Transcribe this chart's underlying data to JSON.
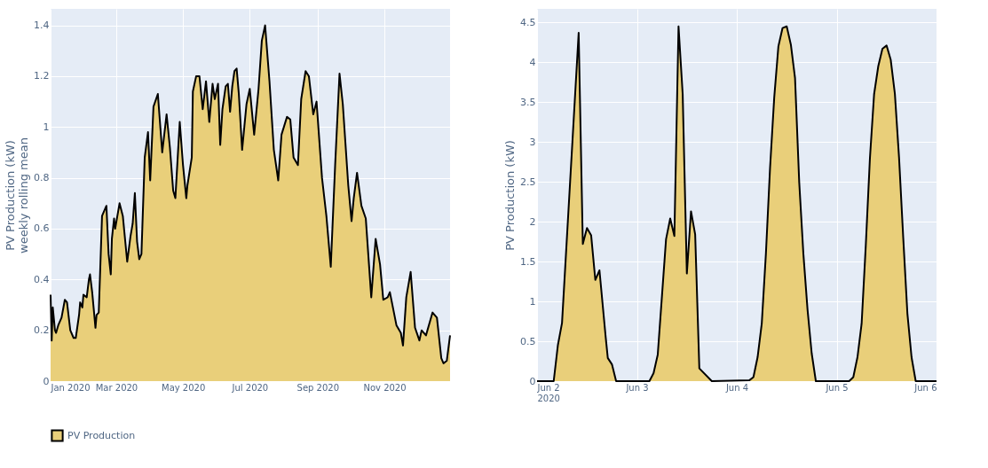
{
  "chart_data": [
    {
      "type": "area",
      "ylabel": "PV Production (kW)\nweekly rolling mean",
      "legend": "bottom left",
      "grid": true,
      "xlim": [
        "2020-01-01",
        "2020-12-31"
      ],
      "xticks": [
        {
          "value": "2020-01-01",
          "label": "Jan 2020"
        },
        {
          "value": "2020-03-01",
          "label": "Mar 2020"
        },
        {
          "value": "2020-05-01",
          "label": "May 2020"
        },
        {
          "value": "2020-07-01",
          "label": "Jul 2020"
        },
        {
          "value": "2020-09-01",
          "label": "Sep 2020"
        },
        {
          "value": "2020-11-01",
          "label": "Nov 2020"
        }
      ],
      "ylim": [
        0,
        1.465
      ],
      "yticks": [
        0,
        0.2,
        0.4,
        0.6,
        0.8,
        1,
        1.2,
        1.4
      ],
      "x": [
        "2020-01-01",
        "2020-01-02",
        "2020-01-03",
        "2020-01-05",
        "2020-01-06",
        "2020-01-08",
        "2020-01-11",
        "2020-01-14",
        "2020-01-16",
        "2020-01-19",
        "2020-01-22",
        "2020-01-24",
        "2020-01-27",
        "2020-01-28",
        "2020-01-30",
        "2020-01-31",
        "2020-02-03",
        "2020-02-05",
        "2020-02-06",
        "2020-02-08",
        "2020-02-11",
        "2020-02-12",
        "2020-02-14",
        "2020-02-17",
        "2020-02-21",
        "2020-02-23",
        "2020-02-25",
        "2020-02-26",
        "2020-02-28",
        "2020-02-29",
        "2020-03-04",
        "2020-03-07",
        "2020-03-11",
        "2020-03-14",
        "2020-03-16",
        "2020-03-18",
        "2020-03-20",
        "2020-03-22",
        "2020-03-24",
        "2020-03-27",
        "2020-03-30",
        "2020-04-01",
        "2020-04-04",
        "2020-04-08",
        "2020-04-12",
        "2020-04-16",
        "2020-04-19",
        "2020-04-22",
        "2020-04-24",
        "2020-04-28",
        "2020-05-01",
        "2020-05-04",
        "2020-05-05",
        "2020-05-09",
        "2020-05-10",
        "2020-05-13",
        "2020-05-16",
        "2020-05-19",
        "2020-05-22",
        "2020-05-25",
        "2020-05-28",
        "2020-05-30",
        "2020-06-02",
        "2020-06-04",
        "2020-06-06",
        "2020-06-09",
        "2020-06-11",
        "2020-06-13",
        "2020-06-15",
        "2020-06-17",
        "2020-06-19",
        "2020-06-21",
        "2020-06-24",
        "2020-06-28",
        "2020-07-01",
        "2020-07-05",
        "2020-07-09",
        "2020-07-12",
        "2020-07-15",
        "2020-07-19",
        "2020-07-23",
        "2020-07-27",
        "2020-07-30",
        "2020-08-04",
        "2020-08-07",
        "2020-08-10",
        "2020-08-14",
        "2020-08-17",
        "2020-08-21",
        "2020-08-24",
        "2020-08-28",
        "2020-08-31",
        "2020-09-05",
        "2020-09-09",
        "2020-09-13",
        "2020-09-17",
        "2020-09-21",
        "2020-09-24",
        "2020-09-29",
        "2020-10-02",
        "2020-10-04",
        "2020-10-07",
        "2020-10-11",
        "2020-10-15",
        "2020-10-20",
        "2020-10-24",
        "2020-10-28",
        "2020-10-31",
        "2020-11-04",
        "2020-11-06",
        "2020-11-12",
        "2020-11-16",
        "2020-11-18",
        "2020-11-21",
        "2020-11-25",
        "2020-11-29",
        "2020-12-03",
        "2020-12-05",
        "2020-12-09",
        "2020-12-15",
        "2020-12-19",
        "2020-12-23",
        "2020-12-25",
        "2020-12-28",
        "2020-12-31"
      ],
      "series": [
        {
          "name": "PV Production",
          "color": "#e9cf7a",
          "values": [
            0.34,
            0.16,
            0.29,
            0.2,
            0.19,
            0.22,
            0.25,
            0.32,
            0.31,
            0.2,
            0.17,
            0.17,
            0.26,
            0.31,
            0.29,
            0.34,
            0.33,
            0.4,
            0.42,
            0.35,
            0.21,
            0.26,
            0.27,
            0.65,
            0.69,
            0.5,
            0.42,
            0.56,
            0.64,
            0.6,
            0.7,
            0.65,
            0.47,
            0.57,
            0.62,
            0.74,
            0.55,
            0.48,
            0.5,
            0.88,
            0.98,
            0.79,
            1.08,
            1.13,
            0.9,
            1.05,
            0.92,
            0.75,
            0.72,
            1.02,
            0.85,
            0.72,
            0.77,
            0.88,
            1.14,
            1.2,
            1.2,
            1.07,
            1.18,
            1.02,
            1.17,
            1.11,
            1.17,
            0.93,
            1.07,
            1.16,
            1.17,
            1.06,
            1.16,
            1.22,
            1.23,
            1.13,
            0.91,
            1.09,
            1.15,
            0.97,
            1.15,
            1.34,
            1.4,
            1.18,
            0.91,
            0.79,
            0.97,
            1.04,
            1.03,
            0.88,
            0.85,
            1.11,
            1.22,
            1.2,
            1.05,
            1.1,
            0.8,
            0.65,
            0.45,
            0.85,
            1.21,
            1.09,
            0.77,
            0.63,
            0.72,
            0.82,
            0.69,
            0.64,
            0.33,
            0.56,
            0.46,
            0.32,
            0.33,
            0.35,
            0.22,
            0.19,
            0.14,
            0.33,
            0.43,
            0.21,
            0.16,
            0.2,
            0.18,
            0.27,
            0.25,
            0.09,
            0.07,
            0.08,
            0.18
          ]
        }
      ]
    },
    {
      "type": "area",
      "ylabel": "PV Production (kW)",
      "grid": true,
      "xlim": [
        "2020-06-02T00:00",
        "2020-06-06T00:00"
      ],
      "xticks": [
        {
          "value": "2020-06-02T00:00",
          "label": "Jun 2\n2020"
        },
        {
          "value": "2020-06-03T00:00",
          "label": "Jun 3"
        },
        {
          "value": "2020-06-04T00:00",
          "label": "Jun 4"
        },
        {
          "value": "2020-06-05T00:00",
          "label": "Jun 5"
        },
        {
          "value": "2020-06-06T00:00",
          "label": "Jun 6"
        }
      ],
      "ylim": [
        0,
        4.67
      ],
      "yticks": [
        0,
        0.5,
        1,
        1.5,
        2,
        2.5,
        3,
        3.5,
        4,
        4.5
      ],
      "x": [
        "2020-06-02T00:00",
        "2020-06-02T04:00",
        "2020-06-02T05:00",
        "2020-06-02T06:00",
        "2020-06-02T10:00",
        "2020-06-02T11:00",
        "2020-06-02T12:00",
        "2020-06-02T13:00",
        "2020-06-02T14:00",
        "2020-06-02T15:00",
        "2020-06-02T16:30",
        "2020-06-02T17:00",
        "2020-06-02T18:00",
        "2020-06-02T19:00",
        "2020-06-03T03:00",
        "2020-06-03T04:00",
        "2020-06-03T05:00",
        "2020-06-03T07:00",
        "2020-06-03T08:00",
        "2020-06-03T09:00",
        "2020-06-03T10:00",
        "2020-06-03T11:00",
        "2020-06-03T12:00",
        "2020-06-03T13:00",
        "2020-06-03T14:00",
        "2020-06-03T15:00",
        "2020-06-03T18:00",
        "2020-06-04T03:00",
        "2020-06-04T04:00",
        "2020-06-04T05:00",
        "2020-06-04T06:00",
        "2020-06-04T07:00",
        "2020-06-04T08:00",
        "2020-06-04T09:00",
        "2020-06-04T10:00",
        "2020-06-04T11:00",
        "2020-06-04T12:00",
        "2020-06-04T13:00",
        "2020-06-04T14:00",
        "2020-06-04T15:00",
        "2020-06-04T16:00",
        "2020-06-04T17:00",
        "2020-06-04T18:00",
        "2020-06-04T19:00",
        "2020-06-05T03:00",
        "2020-06-05T04:00",
        "2020-06-05T05:00",
        "2020-06-05T06:00",
        "2020-06-05T07:00",
        "2020-06-05T08:00",
        "2020-06-05T09:00",
        "2020-06-05T10:00",
        "2020-06-05T11:00",
        "2020-06-05T12:00",
        "2020-06-05T13:00",
        "2020-06-05T14:00",
        "2020-06-05T15:00",
        "2020-06-05T16:00",
        "2020-06-05T17:00",
        "2020-06-05T18:00",
        "2020-06-05T19:00",
        "2020-06-06T00:00"
      ],
      "series": [
        {
          "color": "#e9cf7a",
          "values": [
            0,
            0,
            0.45,
            0.73,
            4.37,
            1.72,
            1.92,
            1.83,
            1.27,
            1.39,
            0.55,
            0.29,
            0.21,
            0,
            0,
            0.1,
            0.33,
            1.78,
            2.04,
            1.82,
            4.45,
            3.6,
            1.35,
            2.13,
            1.84,
            0.16,
            0,
            0.01,
            0.05,
            0.3,
            0.72,
            1.6,
            2.68,
            3.56,
            4.2,
            4.43,
            4.45,
            4.22,
            3.8,
            2.5,
            1.6,
            0.9,
            0.35,
            0,
            0,
            0.05,
            0.3,
            0.72,
            1.7,
            2.8,
            3.6,
            3.95,
            4.17,
            4.21,
            4.03,
            3.6,
            2.8,
            1.8,
            0.85,
            0.3,
            0,
            0
          ]
        }
      ]
    }
  ]
}
